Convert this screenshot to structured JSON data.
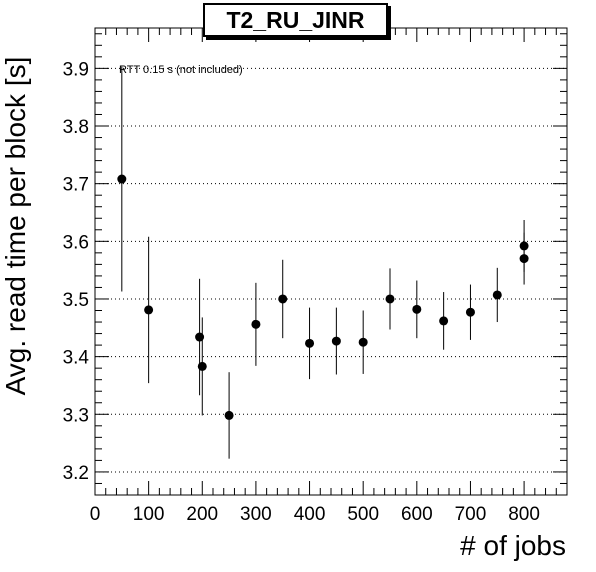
{
  "chart_data": {
    "type": "scatter",
    "title": "T2_RU_JINR",
    "xlabel": "# of jobs",
    "ylabel": "Avg. read time per block [s]",
    "annotation": "RTT 0.15 s (not included)",
    "xlim": [
      0,
      880
    ],
    "ylim": [
      3.16,
      3.97
    ],
    "xticks": [
      0,
      100,
      200,
      300,
      400,
      500,
      600,
      700,
      800
    ],
    "yticks": [
      3.2,
      3.3,
      3.4,
      3.5,
      3.6,
      3.7,
      3.8,
      3.9
    ],
    "grid": "horizontal dotted",
    "series": [
      {
        "points": [
          {
            "x": 50,
            "y": 3.708,
            "err": 0.195
          },
          {
            "x": 100,
            "y": 3.481,
            "err": 0.127
          },
          {
            "x": 195,
            "y": 3.434,
            "err": 0.101
          },
          {
            "x": 200,
            "y": 3.383,
            "err": 0.085
          },
          {
            "x": 250,
            "y": 3.298,
            "err": 0.075
          },
          {
            "x": 300,
            "y": 3.456,
            "err": 0.072
          },
          {
            "x": 350,
            "y": 3.5,
            "err": 0.068
          },
          {
            "x": 400,
            "y": 3.423,
            "err": 0.062
          },
          {
            "x": 450,
            "y": 3.427,
            "err": 0.058
          },
          {
            "x": 500,
            "y": 3.425,
            "err": 0.055
          },
          {
            "x": 550,
            "y": 3.5,
            "err": 0.053
          },
          {
            "x": 600,
            "y": 3.482,
            "err": 0.05
          },
          {
            "x": 650,
            "y": 3.462,
            "err": 0.05
          },
          {
            "x": 700,
            "y": 3.477,
            "err": 0.048
          },
          {
            "x": 750,
            "y": 3.507,
            "err": 0.047
          },
          {
            "x": 800,
            "y": 3.57,
            "err": 0.045
          },
          {
            "x": 800,
            "y": 3.592,
            "err": 0.045
          }
        ]
      }
    ]
  }
}
